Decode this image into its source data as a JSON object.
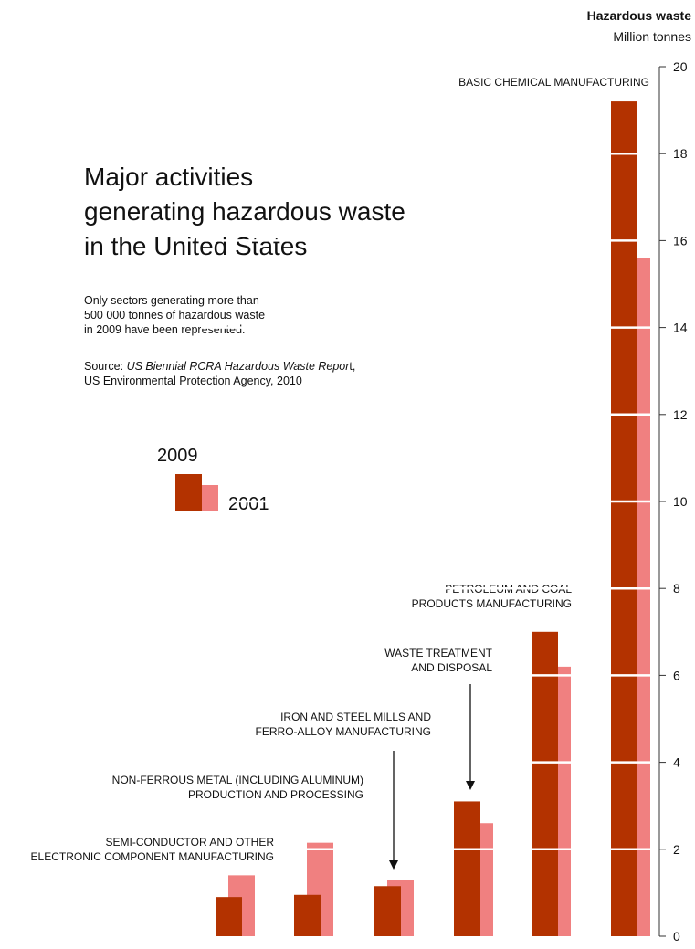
{
  "title": [
    "Major activities",
    "generating hazardous waste",
    "in the United States"
  ],
  "note": [
    "Only sectors generating more than",
    "500 000 tonnes of hazardous waste",
    "in 2009 have been represented."
  ],
  "source": {
    "prefix": "Source: ",
    "italic": "US Biennial RCRA Hazardous Waste Repor",
    "suffix": "t,",
    "line2": "US Environmental Protection Agency, 2010"
  },
  "axis": {
    "title": "Hazardous waste",
    "unit": "Million tonnes"
  },
  "legend": {
    "year_a": "2009",
    "year_b": "2001"
  },
  "colors": {
    "y2009": "#b33200",
    "y2001": "#f08080",
    "axis": "#333333",
    "gridline": "#ffffff"
  },
  "chart_data": {
    "type": "bar",
    "title": "Major activities generating hazardous waste in the United States",
    "ylabel": "Hazardous waste",
    "yunit": "Million tonnes",
    "ylim": [
      0,
      20
    ],
    "yticks": [
      0,
      2,
      4,
      6,
      8,
      10,
      12,
      14,
      16,
      18,
      20
    ],
    "categories": [
      [
        "SEMI-CONDUCTOR AND OTHER",
        "ELECTRONIC COMPONENT MANUFACTURING"
      ],
      [
        "NON-FERROUS METAL (INCLUDING ALUMINUM)",
        "PRODUCTION AND PROCESSING"
      ],
      [
        "IRON AND STEEL MILLS AND",
        "FERRO-ALLOY MANUFACTURING"
      ],
      [
        "WASTE TREATMENT",
        "AND DISPOSAL"
      ],
      [
        "PETROLEUM AND COAL",
        "PRODUCTS MANUFACTURING"
      ],
      [
        "BASIC CHEMICAL MANUFACTURING"
      ]
    ],
    "series": [
      {
        "name": "2009",
        "values": [
          0.9,
          0.95,
          1.15,
          3.1,
          7.0,
          19.2
        ]
      },
      {
        "name": "2001",
        "values": [
          1.4,
          2.15,
          1.3,
          2.6,
          6.2,
          15.6
        ]
      }
    ]
  }
}
